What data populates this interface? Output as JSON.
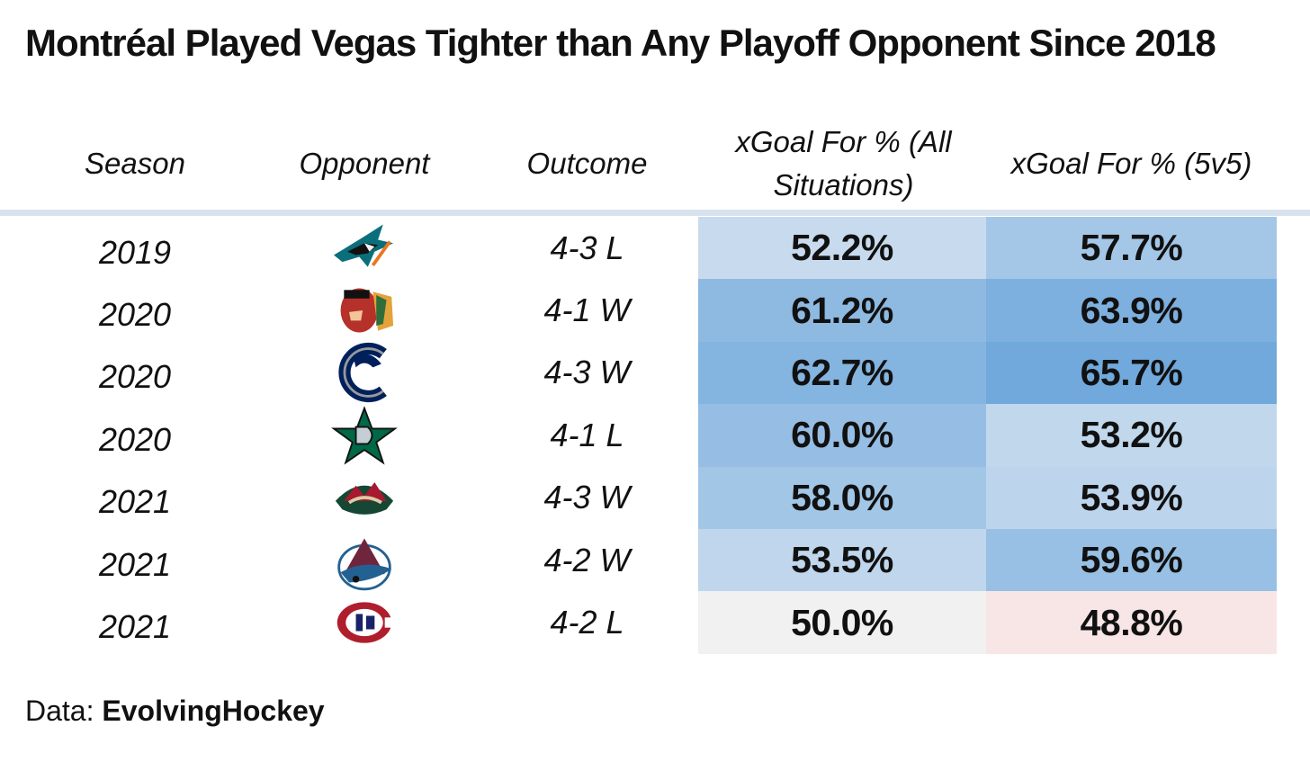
{
  "title": "Montréal Played Vegas Tighter than Any Playoff Opponent Since 2018",
  "source": {
    "prefix": "Data: ",
    "name": "EvolvingHockey"
  },
  "colors": {
    "high": "#6fa8dc",
    "mid": "#c9dcee",
    "neutral": "#f1f1f1",
    "below_50": "#f8e6e6",
    "header_rule": "#d8e2ed"
  },
  "chart_data": {
    "type": "table",
    "title": "Montréal Played Vegas Tighter than Any Playoff Opponent Since 2018",
    "columns": [
      "Season",
      "Opponent",
      "Outcome",
      "xGoal For % (All Situations)",
      "xGoal For % (5v5)"
    ],
    "rows": [
      {
        "season": "2019",
        "opponent_icon": "san-jose-sharks-logo-icon",
        "outcome": "4-3 L",
        "xgf_all": "52.2%",
        "xgf_5v5": "57.7%"
      },
      {
        "season": "2020",
        "opponent_icon": "chicago-blackhawks-logo-icon",
        "outcome": "4-1 W",
        "xgf_all": "61.2%",
        "xgf_5v5": "63.9%"
      },
      {
        "season": "2020",
        "opponent_icon": "vancouver-canucks-logo-icon",
        "outcome": "4-3 W",
        "xgf_all": "62.7%",
        "xgf_5v5": "65.7%"
      },
      {
        "season": "2020",
        "opponent_icon": "dallas-stars-logo-icon",
        "outcome": "4-1 L",
        "xgf_all": "60.0%",
        "xgf_5v5": "53.2%"
      },
      {
        "season": "2021",
        "opponent_icon": "minnesota-wild-logo-icon",
        "outcome": "4-3 W",
        "xgf_all": "58.0%",
        "xgf_5v5": "53.9%"
      },
      {
        "season": "2021",
        "opponent_icon": "colorado-avalanche-logo-icon",
        "outcome": "4-2 W",
        "xgf_all": "53.5%",
        "xgf_5v5": "59.6%"
      },
      {
        "season": "2021",
        "opponent_icon": "montreal-canadiens-logo-icon",
        "outcome": "4-2 L",
        "xgf_all": "50.0%",
        "xgf_5v5": "48.8%"
      }
    ]
  }
}
